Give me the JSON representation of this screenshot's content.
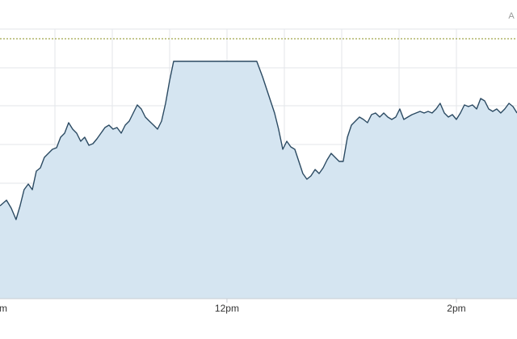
{
  "chart_data": {
    "type": "area",
    "corner_label": "A",
    "x": [
      601.3,
      604.7,
      607.2,
      609.7,
      611.8,
      613.9,
      616.1,
      618.2,
      620.3,
      622.4,
      624.5,
      626.6,
      628.7,
      630.9,
      633.0,
      635.1,
      637.2,
      639.3,
      641.4,
      643.5,
      645.6,
      647.8,
      649.9,
      652.0,
      654.1,
      656.2,
      658.3,
      660.4,
      662.5,
      664.7,
      666.8,
      668.9,
      671.0,
      673.1,
      675.2,
      677.3,
      679.4,
      681.6,
      683.7,
      685.8,
      687.9,
      690.0,
      692.1,
      698.5,
      706.9,
      715.4,
      723.8,
      735.6,
      738.6,
      740.7,
      742.8,
      744.9,
      747.0,
      749.2,
      751.3,
      753.4,
      755.5,
      757.6,
      759.7,
      761.8,
      763.9,
      766.1,
      768.2,
      770.3,
      772.4,
      774.5,
      776.6,
      778.7,
      780.8,
      783.0,
      785.1,
      787.2,
      789.3,
      791.4,
      793.5,
      795.6,
      797.7,
      799.9,
      802.0,
      804.1,
      806.2,
      808.3,
      810.4,
      812.5,
      814.6,
      816.8,
      818.9,
      821.0,
      823.1,
      825.2,
      827.3,
      829.4,
      831.5,
      833.7,
      835.8,
      837.9,
      840.0,
      842.1,
      844.2,
      846.3,
      848.4,
      850.6,
      852.7,
      854.8,
      856.9,
      859.0,
      861.1,
      863.2,
      865.3,
      867.5,
      869.6,
      871.7
    ],
    "values": [
      115,
      122,
      112,
      98,
      115,
      135,
      142,
      135,
      158,
      162,
      175,
      180,
      185,
      187,
      200,
      205,
      218,
      210,
      205,
      195,
      200,
      190,
      192,
      198,
      205,
      212,
      215,
      210,
      212,
      205,
      215,
      220,
      230,
      240,
      235,
      225,
      220,
      215,
      210,
      220,
      242,
      270,
      294,
      294,
      294,
      294,
      294,
      294,
      275,
      260,
      245,
      230,
      210,
      185,
      195,
      188,
      185,
      170,
      155,
      148,
      152,
      160,
      155,
      162,
      172,
      180,
      175,
      170,
      170,
      200,
      215,
      220,
      225,
      222,
      218,
      228,
      230,
      225,
      230,
      225,
      222,
      225,
      235,
      222,
      225,
      228,
      230,
      232,
      230,
      232,
      230,
      235,
      242,
      230,
      225,
      228,
      222,
      230,
      240,
      238,
      240,
      235,
      248,
      245,
      235,
      232,
      235,
      230,
      235,
      242,
      238,
      230
    ],
    "color": "#2b4a62",
    "fill_color": "#d5e5f1",
    "reference_line": 322,
    "reference_color": "#8a8f1e",
    "xlim": [
      601.3,
      871.7
    ],
    "ylim": [
      0,
      334
    ],
    "xticks": [
      {
        "value": 600,
        "label": "m"
      },
      {
        "value": 720,
        "label": "12pm"
      },
      {
        "value": 840,
        "label": "2pm"
      }
    ]
  }
}
